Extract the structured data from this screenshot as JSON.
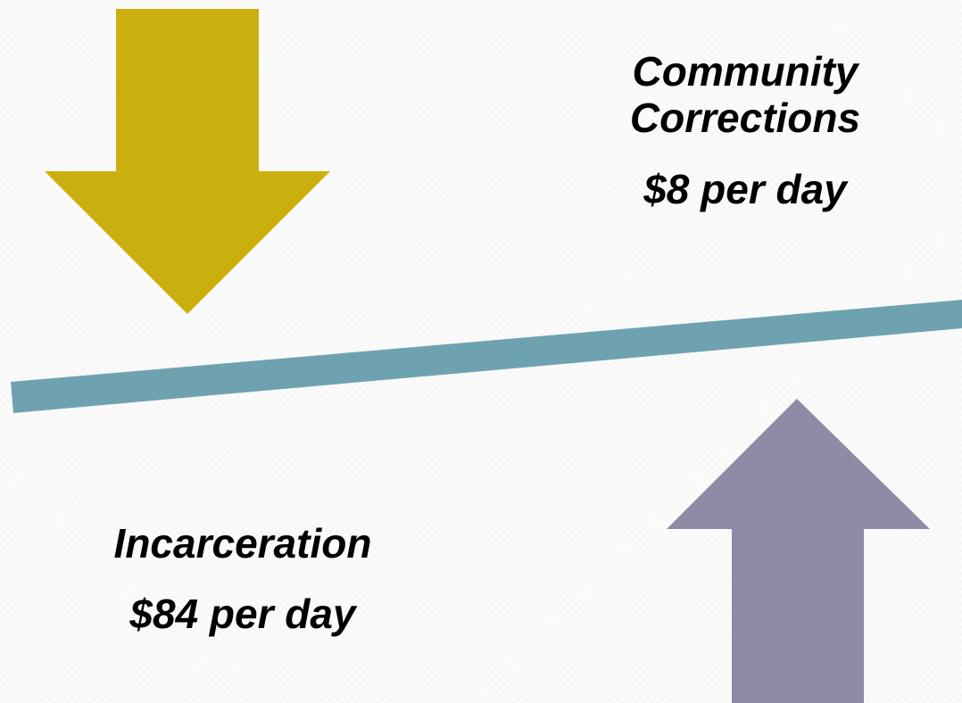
{
  "colors": {
    "down_arrow": "#cbb00d",
    "up_arrow": "#8f8aa6",
    "beam": "#6fa2b0",
    "text": "#000000"
  },
  "community": {
    "title_line1": "Community",
    "title_line2": "Corrections",
    "cost": "$8 per day"
  },
  "incarceration": {
    "title": "Incarceration",
    "cost": "$84 per day"
  },
  "icons": {
    "down_arrow": "arrow-down-icon",
    "up_arrow": "arrow-up-icon"
  }
}
